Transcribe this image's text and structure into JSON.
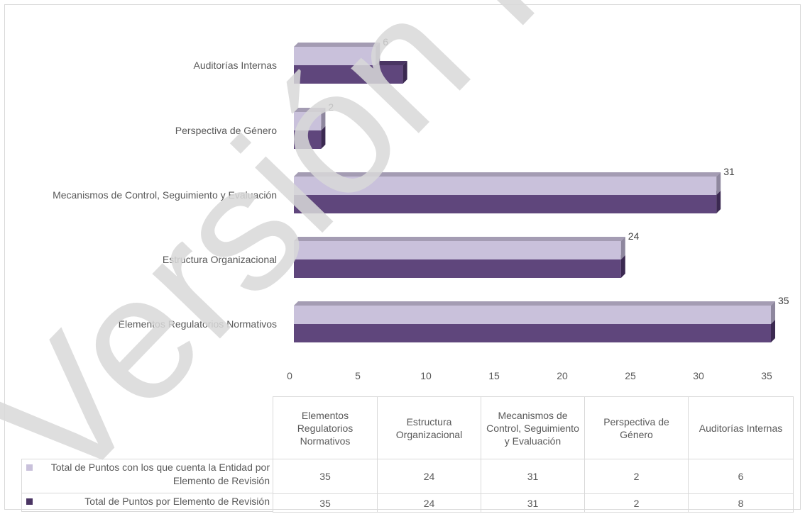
{
  "chart_data": {
    "type": "bar",
    "orientation": "horizontal",
    "style": "3d-clustered",
    "categories": [
      "Elementos Regulatorios Normativos",
      "Estructura Organizacional",
      "Mecanismos de Control, Seguimiento y Evaluación",
      "Perspectiva de Género",
      "Auditorías Internas"
    ],
    "table_headers": [
      "Elementos Regulatorios Normativos",
      "Estructura Organizacional",
      "Mecanismos de Control, Seguimiento y Evaluación",
      "Perspectiva de Género",
      "Auditorías Internas"
    ],
    "series": [
      {
        "name": "Total de Puntos con los que cuenta la Entidad por Elemento de Revisión",
        "values": [
          35,
          24,
          31,
          2,
          6
        ],
        "color": "#c9c1db",
        "top_color": "#a49cb3",
        "side_color": "#8e879e",
        "value_labels": [
          "35",
          "24",
          "31",
          "2",
          "6"
        ]
      },
      {
        "name": "Total de Puntos por Elemento de Revisión",
        "values": [
          35,
          24,
          31,
          2,
          8
        ],
        "color": "#5f467c",
        "top_color": "#4a3563",
        "side_color": "#3b2951"
      }
    ],
    "xlim": [
      0,
      35
    ],
    "x_ticks": [
      "0",
      "5",
      "10",
      "15",
      "20",
      "25",
      "30",
      "35"
    ],
    "x_tick_values": [
      0,
      5,
      10,
      15,
      20,
      25,
      30,
      35
    ],
    "gridlines": false,
    "legend": "data-table",
    "title": "",
    "xlabel": "",
    "ylabel": ""
  },
  "watermark": {
    "text": "Versión P",
    "color": "#d9d9d9"
  }
}
